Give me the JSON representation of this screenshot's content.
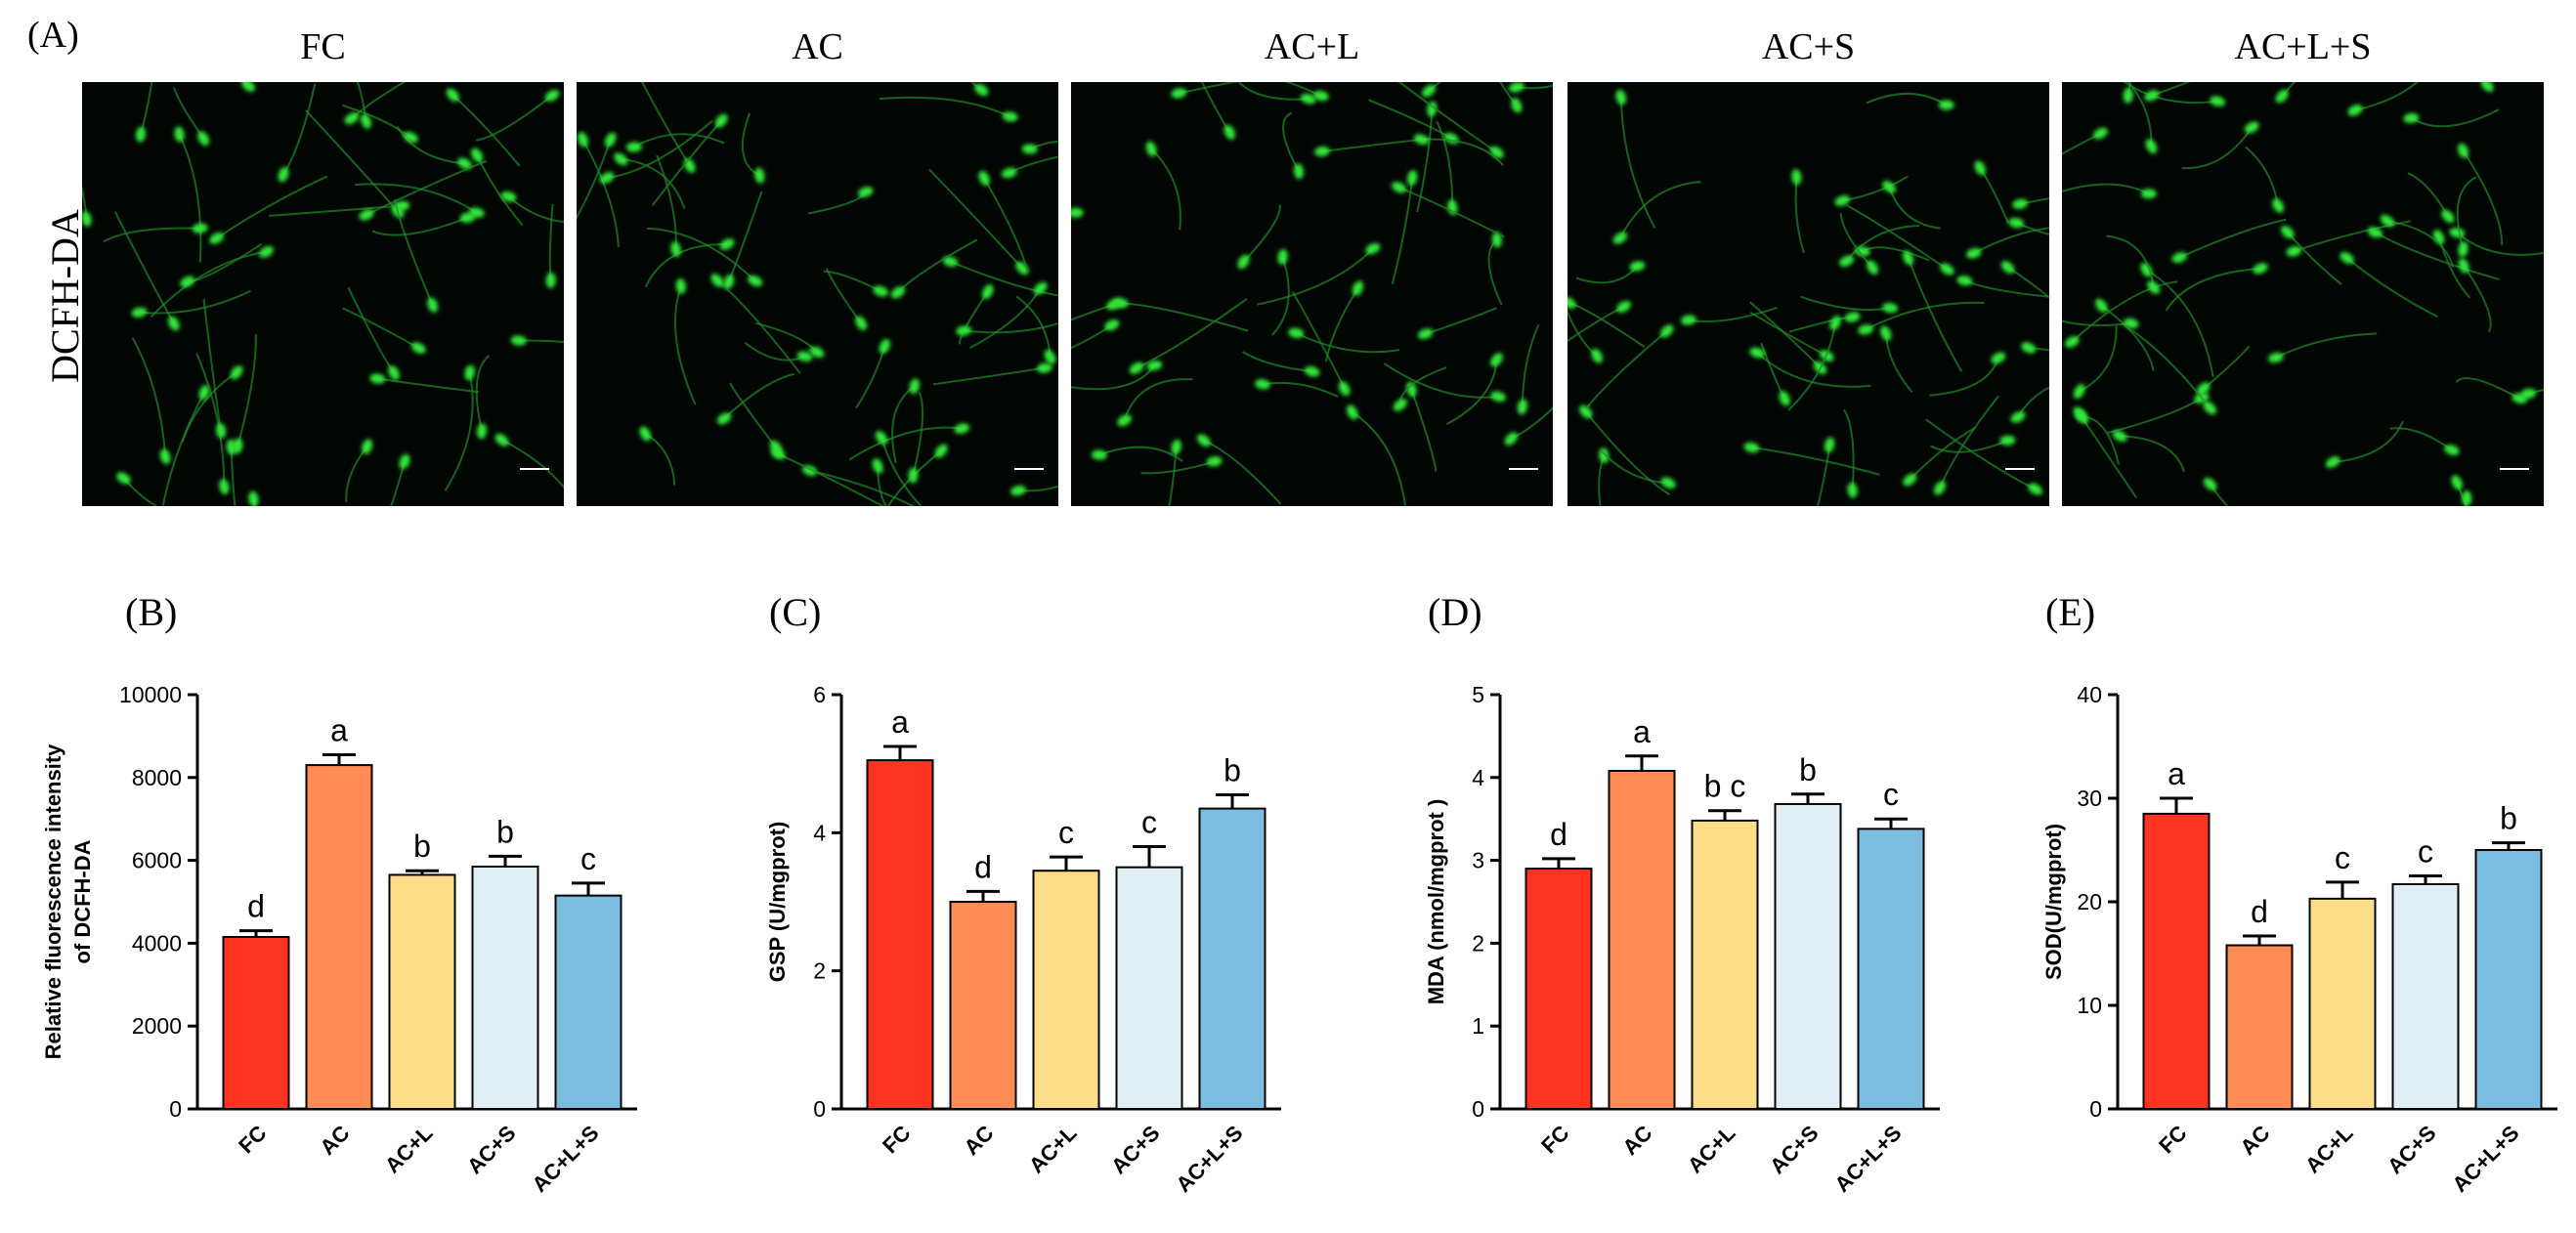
{
  "panel_a": {
    "label": "(A)",
    "row_label": "DCFH-DA",
    "columns": [
      "FC",
      "AC",
      "AC+L",
      "AC+S",
      "AC+L+S"
    ]
  },
  "chart_data": [
    {
      "type": "bar",
      "panel": "(B)",
      "ylabel": [
        "Relative fluorescence intensity",
        "of DCFH-DA"
      ],
      "categories": [
        "FC",
        "AC",
        "AC+L",
        "AC+S",
        "AC+L+S"
      ],
      "values": [
        4150,
        8300,
        5650,
        5850,
        5150
      ],
      "errors": [
        150,
        250,
        100,
        250,
        300
      ],
      "letters": [
        "d",
        "a",
        "b",
        "b",
        "c"
      ],
      "colors": [
        "#ff3322",
        "#ff8c55",
        "#ffdd88",
        "#e0eff5",
        "#7bbde0"
      ],
      "ylim": [
        0,
        10000
      ],
      "yticks": [
        0,
        2000,
        4000,
        6000,
        8000,
        10000
      ]
    },
    {
      "type": "bar",
      "panel": "(C)",
      "ylabel": [
        "GSP (U/mgprot)"
      ],
      "categories": [
        "FC",
        "AC",
        "AC+L",
        "AC+S",
        "AC+L+S"
      ],
      "values": [
        5.05,
        3.0,
        3.45,
        3.5,
        4.35
      ],
      "errors": [
        0.2,
        0.15,
        0.2,
        0.3,
        0.2
      ],
      "letters": [
        "a",
        "d",
        "c",
        "c",
        "b"
      ],
      "colors": [
        "#ff3322",
        "#ff8c55",
        "#ffdd88",
        "#e0eff5",
        "#7bbde0"
      ],
      "ylim": [
        0,
        6
      ],
      "yticks": [
        0,
        2,
        4,
        6
      ]
    },
    {
      "type": "bar",
      "panel": "(D)",
      "ylabel": [
        "MDA (nmol/mgprot )"
      ],
      "categories": [
        "FC",
        "AC",
        "AC+L",
        "AC+S",
        "AC+L+S"
      ],
      "values": [
        2.9,
        4.08,
        3.48,
        3.68,
        3.38
      ],
      "errors": [
        0.12,
        0.18,
        0.12,
        0.12,
        0.12
      ],
      "letters": [
        "d",
        "a",
        "b c",
        "b",
        "c"
      ],
      "colors": [
        "#ff3322",
        "#ff8c55",
        "#ffdd88",
        "#e0eff5",
        "#7bbde0"
      ],
      "ylim": [
        0,
        5
      ],
      "yticks": [
        0,
        1,
        2,
        3,
        4,
        5
      ]
    },
    {
      "type": "bar",
      "panel": "(E)",
      "ylabel": [
        "SOD(U/mgprot)"
      ],
      "categories": [
        "FC",
        "AC",
        "AC+L",
        "AC+S",
        "AC+L+S"
      ],
      "values": [
        28.5,
        15.8,
        20.3,
        21.7,
        25
      ],
      "errors": [
        1.5,
        0.9,
        1.6,
        0.8,
        0.7
      ],
      "letters": [
        "a",
        "d",
        "c",
        "c",
        "b"
      ],
      "colors": [
        "#ff3322",
        "#ff8c55",
        "#ffdd88",
        "#e0eff5",
        "#7bbde0"
      ],
      "ylim": [
        0,
        40
      ],
      "yticks": [
        0,
        10,
        20,
        30,
        40
      ]
    }
  ]
}
